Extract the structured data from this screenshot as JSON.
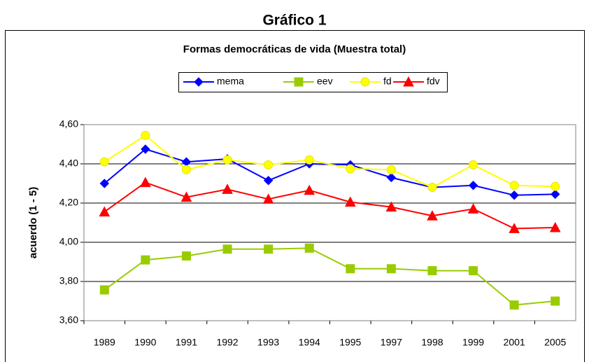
{
  "chart_data": {
    "type": "line",
    "heading": "Gráfico 1",
    "title": "Formas democráticas de vida (Muestra total)",
    "y_label": "acuerdo (1 - 5)",
    "categories": [
      "1989",
      "1990",
      "1991",
      "1992",
      "1993",
      "1994",
      "1995",
      "1997",
      "1998",
      "1999",
      "2001",
      "2005"
    ],
    "series": [
      {
        "name": "mema",
        "color": "#0000ff",
        "marker": "diamond",
        "values": [
          4.3,
          4.475,
          4.41,
          4.425,
          4.315,
          4.4,
          4.395,
          4.33,
          4.28,
          4.29,
          4.24,
          4.245
        ]
      },
      {
        "name": "eev",
        "color": "#99cc00",
        "marker": "square",
        "values": [
          3.757,
          3.91,
          3.93,
          3.965,
          3.965,
          3.97,
          3.865,
          3.865,
          3.855,
          3.855,
          3.68,
          3.7
        ]
      },
      {
        "name": "fd",
        "color": "#ffff00",
        "marker": "circle",
        "values": [
          4.41,
          4.545,
          4.37,
          4.42,
          4.395,
          4.42,
          4.375,
          4.37,
          4.28,
          4.395,
          4.29,
          4.285
        ]
      },
      {
        "name": "fdv",
        "color": "#ff0000",
        "marker": "triangle",
        "values": [
          4.155,
          4.305,
          4.23,
          4.27,
          4.22,
          4.265,
          4.205,
          4.18,
          4.135,
          4.17,
          4.07,
          4.075
        ]
      }
    ],
    "ylim": [
      3.6,
      4.6
    ],
    "yticks": [
      {
        "value": 3.6,
        "label": "3,60"
      },
      {
        "value": 3.8,
        "label": "3,80"
      },
      {
        "value": 4.0,
        "label": "4,00"
      },
      {
        "value": 4.2,
        "label": "4,20"
      },
      {
        "value": 4.4,
        "label": "4,40"
      },
      {
        "value": 4.6,
        "label": "4,60"
      }
    ],
    "grid": true,
    "legend": "top"
  }
}
